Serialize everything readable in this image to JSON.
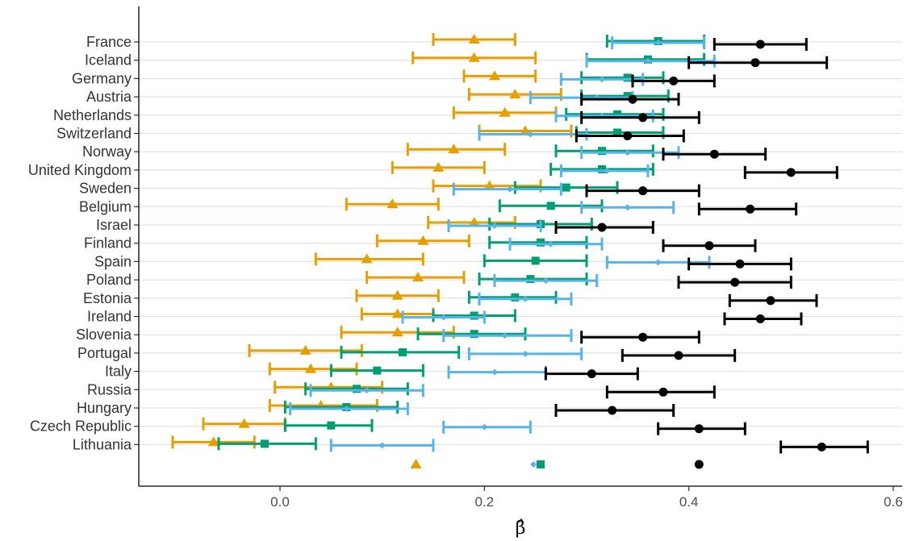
{
  "chart_data": {
    "type": "dot-errorbar",
    "xlabel": "β̂",
    "xlim": [
      -0.135,
      0.605
    ],
    "xticks": [
      0.0,
      0.2,
      0.4,
      0.6
    ],
    "xtick_labels": [
      "0.0",
      "0.2",
      "0.4",
      "0.6"
    ],
    "grid": "horizontal",
    "colors": {
      "orange": "#E69F00",
      "green": "#009E73",
      "blue": "#56B4E9",
      "black": "#000000"
    },
    "categories": [
      "France",
      "Iceland",
      "Germany",
      "Austria",
      "Netherlands",
      "Switzerland",
      "Norway",
      "United Kingdom",
      "Sweden",
      "Belgium",
      "Israel",
      "Finland",
      "Spain",
      "Poland",
      "Estonia",
      "Ireland",
      "Slovenia",
      "Portugal",
      "Italy",
      "Russia",
      "Hungary",
      "Czech Republic",
      "Lithuania"
    ],
    "series": [
      {
        "color": "#E69F00",
        "marker": "triangle",
        "est": [
          0.19,
          0.19,
          0.21,
          0.23,
          0.22,
          0.24,
          0.17,
          0.155,
          0.205,
          0.11,
          0.19,
          0.14,
          0.085,
          0.135,
          0.115,
          0.115,
          0.115,
          0.025,
          0.03,
          0.05,
          0.04,
          -0.035,
          -0.065
        ],
        "lo": [
          0.15,
          0.13,
          0.18,
          0.185,
          0.17,
          0.195,
          0.125,
          0.11,
          0.15,
          0.065,
          0.145,
          0.095,
          0.035,
          0.085,
          0.075,
          0.08,
          0.06,
          -0.03,
          -0.01,
          -0.005,
          -0.01,
          -0.075,
          -0.105
        ],
        "hi": [
          0.23,
          0.25,
          0.25,
          0.275,
          0.27,
          0.285,
          0.22,
          0.2,
          0.255,
          0.155,
          0.23,
          0.185,
          0.14,
          0.18,
          0.155,
          0.15,
          0.17,
          0.08,
          0.075,
          0.1,
          0.095,
          0.005,
          -0.025
        ],
        "overall": 0.133
      },
      {
        "color": "#009E73",
        "marker": "square",
        "est": [
          0.37,
          0.36,
          0.34,
          0.34,
          0.33,
          0.33,
          0.315,
          0.315,
          0.28,
          0.265,
          0.255,
          0.255,
          0.25,
          0.245,
          0.23,
          0.19,
          0.19,
          0.12,
          0.095,
          0.075,
          0.065,
          0.05,
          -0.015
        ],
        "lo": [
          0.32,
          0.3,
          0.295,
          0.295,
          0.28,
          0.29,
          0.27,
          0.265,
          0.23,
          0.215,
          0.205,
          0.205,
          0.2,
          0.195,
          0.185,
          0.15,
          0.135,
          0.06,
          0.05,
          0.025,
          0.005,
          0.005,
          -0.06
        ],
        "hi": [
          0.415,
          0.415,
          0.375,
          0.38,
          0.375,
          0.375,
          0.365,
          0.365,
          0.33,
          0.315,
          0.305,
          0.3,
          0.3,
          0.3,
          0.27,
          0.23,
          0.24,
          0.175,
          0.14,
          0.125,
          0.115,
          0.09,
          0.035
        ],
        "overall": 0.255
      },
      {
        "color": "#56B4E9",
        "marker": "diamond",
        "est": [
          0.37,
          0.36,
          0.315,
          0.31,
          0.315,
          0.245,
          0.34,
          0.32,
          0.225,
          0.34,
          0.21,
          0.265,
          0.37,
          0.26,
          0.24,
          0.16,
          0.22,
          0.24,
          0.21,
          0.085,
          0.065,
          0.2,
          0.1
        ],
        "lo": [
          0.325,
          0.3,
          0.275,
          0.245,
          0.27,
          0.195,
          0.295,
          0.275,
          0.17,
          0.295,
          0.165,
          0.225,
          0.32,
          0.21,
          0.195,
          0.12,
          0.16,
          0.185,
          0.165,
          0.03,
          0.01,
          0.16,
          0.05
        ],
        "hi": [
          0.415,
          0.425,
          0.355,
          0.345,
          0.365,
          0.3,
          0.39,
          0.36,
          0.275,
          0.385,
          0.255,
          0.315,
          0.42,
          0.31,
          0.285,
          0.2,
          0.285,
          0.295,
          0.26,
          0.14,
          0.125,
          0.245,
          0.15
        ],
        "overall": 0.248
      },
      {
        "color": "#000000",
        "marker": "circle",
        "est": [
          0.47,
          0.465,
          0.385,
          0.345,
          0.355,
          0.34,
          0.425,
          0.5,
          0.355,
          0.46,
          0.315,
          0.42,
          0.45,
          0.445,
          0.48,
          0.47,
          0.355,
          0.39,
          0.305,
          0.375,
          0.325,
          0.41,
          0.53
        ],
        "lo": [
          0.425,
          0.4,
          0.345,
          0.295,
          0.295,
          0.29,
          0.375,
          0.455,
          0.3,
          0.41,
          0.27,
          0.375,
          0.4,
          0.39,
          0.44,
          0.435,
          0.295,
          0.335,
          0.26,
          0.32,
          0.27,
          0.37,
          0.49
        ],
        "hi": [
          0.515,
          0.535,
          0.425,
          0.39,
          0.41,
          0.395,
          0.475,
          0.545,
          0.41,
          0.505,
          0.365,
          0.465,
          0.5,
          0.5,
          0.525,
          0.51,
          0.41,
          0.445,
          0.35,
          0.425,
          0.385,
          0.455,
          0.575
        ],
        "overall": 0.41
      }
    ]
  }
}
